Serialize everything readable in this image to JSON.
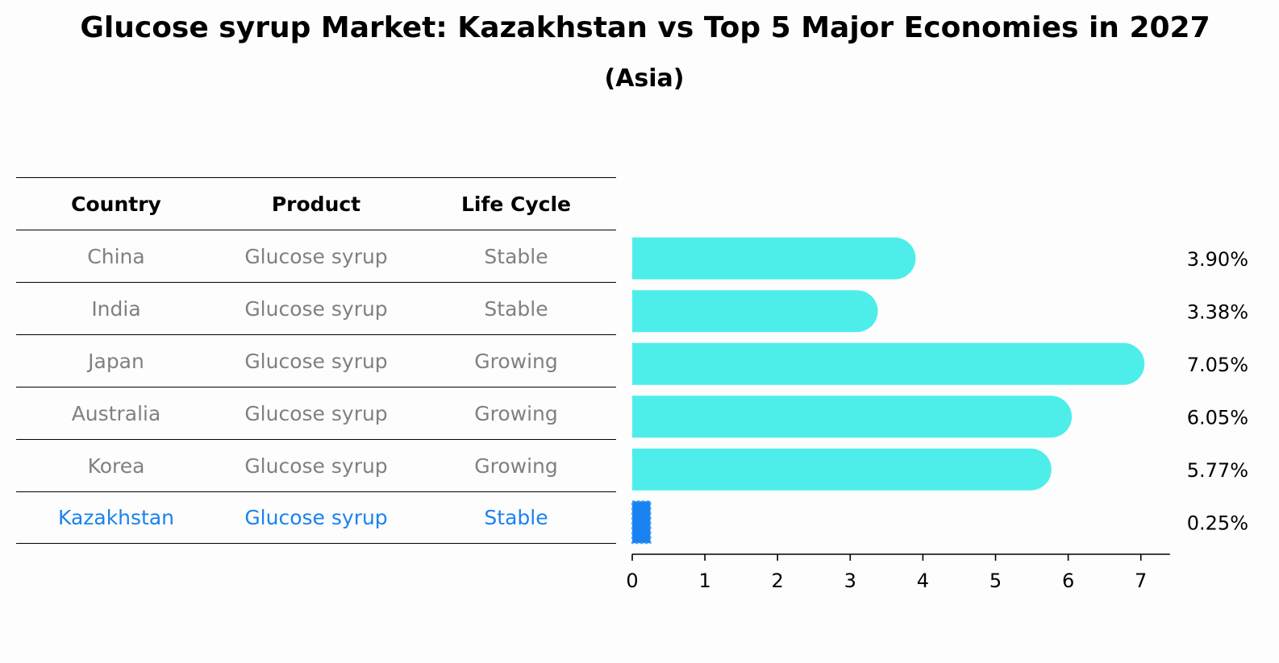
{
  "title": "Glucose syrup Market: Kazakhstan vs Top 5 Major Economies in 2027",
  "subtitle": "(Asia)",
  "table": {
    "headers": [
      "Country",
      "Product",
      "Life Cycle"
    ],
    "rows": [
      {
        "country": "China",
        "product": "Glucose syrup",
        "life_cycle": "Stable",
        "highlight": false
      },
      {
        "country": "India",
        "product": "Glucose syrup",
        "life_cycle": "Stable",
        "highlight": false
      },
      {
        "country": "Japan",
        "product": "Glucose syrup",
        "life_cycle": "Growing",
        "highlight": false
      },
      {
        "country": "Australia",
        "product": "Glucose syrup",
        "life_cycle": "Growing",
        "highlight": false
      },
      {
        "country": "Korea",
        "product": "Glucose syrup",
        "life_cycle": "Growing",
        "highlight": false
      },
      {
        "country": "Kazakhstan",
        "product": "Glucose syrup",
        "life_cycle": "Stable",
        "highlight": true
      }
    ]
  },
  "colors": {
    "bar": "#4deeea",
    "highlight": "#1a82f0",
    "muted_text": "#808080",
    "axis": "#000000"
  },
  "chart_data": {
    "type": "bar",
    "orientation": "horizontal",
    "categories": [
      "China",
      "India",
      "Japan",
      "Australia",
      "Korea",
      "Kazakhstan"
    ],
    "values": [
      3.9,
      3.38,
      7.05,
      6.05,
      5.77,
      0.25
    ],
    "value_labels": [
      "3.90%",
      "3.38%",
      "7.05%",
      "6.05%",
      "5.77%",
      "0.25%"
    ],
    "xlim": [
      0,
      7.4
    ],
    "xticks": [
      0,
      1,
      2,
      3,
      4,
      5,
      6,
      7
    ],
    "grid": false
  }
}
